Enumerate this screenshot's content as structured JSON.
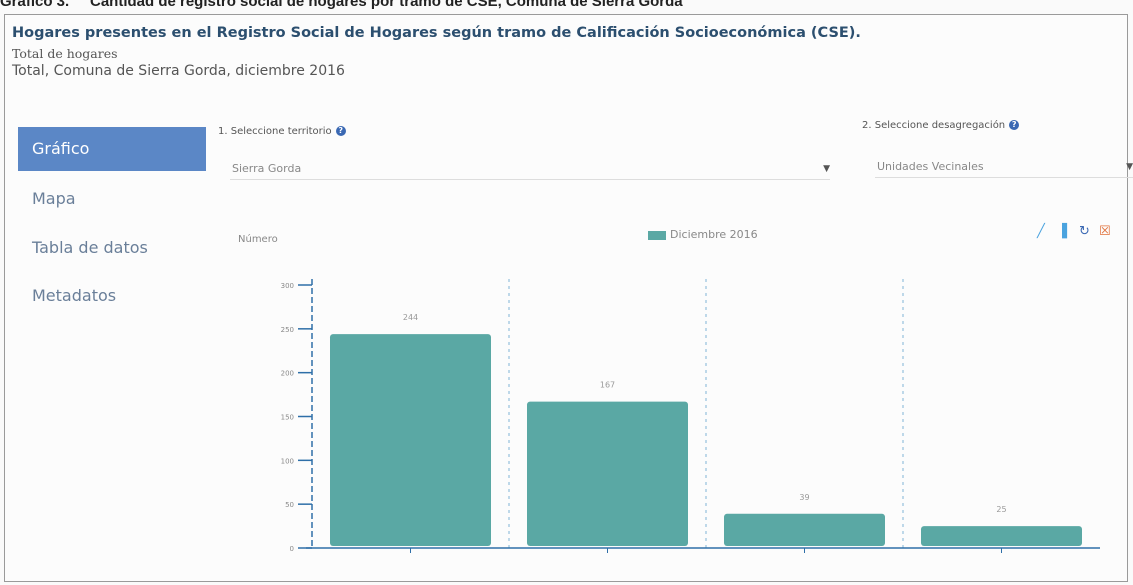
{
  "caption": {
    "prefix": "Gráfico 3.",
    "text": "Cantidad de registro social de hogares por tramo de CSE, Comuna de Sierra Gorda"
  },
  "header": {
    "title": "Hogares presentes en el Registro Social de Hogares según tramo de Calificación Socioeconómica (CSE).",
    "subtitle1": "Total de hogares",
    "subtitle2": "Total, Comuna de Sierra Gorda, diciembre 2016"
  },
  "nav": {
    "items": [
      {
        "label": "Gráfico"
      },
      {
        "label": "Mapa"
      },
      {
        "label": "Tabla de datos"
      },
      {
        "label": "Metadatos"
      }
    ]
  },
  "controls": {
    "territory_label": "1. Seleccione territorio",
    "territory_value": "Sierra Gorda",
    "disaggregation_label": "2. Seleccione desagregación",
    "disaggregation_value": "Unidades Vecinales"
  },
  "icons": {
    "help": "help-icon",
    "line_chart": "line-chart-icon",
    "bar_chart": "bar-chart-icon",
    "refresh": "refresh-icon",
    "download": "download-icon"
  },
  "colors": {
    "bar": "#5aa8a4",
    "nav_active": "#5b87c6",
    "title": "#2c4f6f"
  },
  "chart_data": {
    "type": "bar",
    "ylabel": "Número",
    "ylim": [
      0,
      300
    ],
    "yticks": [
      "0",
      "50",
      "100",
      "150",
      "200",
      "250",
      "300"
    ],
    "categories": [
      "",
      "",
      "",
      ""
    ],
    "series": [
      {
        "name": "Diciembre 2016",
        "values": [
          244,
          167,
          39,
          25
        ]
      }
    ],
    "data_labels": [
      "244",
      "167",
      "39",
      "25"
    ],
    "grid": "vertical-dashed",
    "legend": "top-center"
  }
}
